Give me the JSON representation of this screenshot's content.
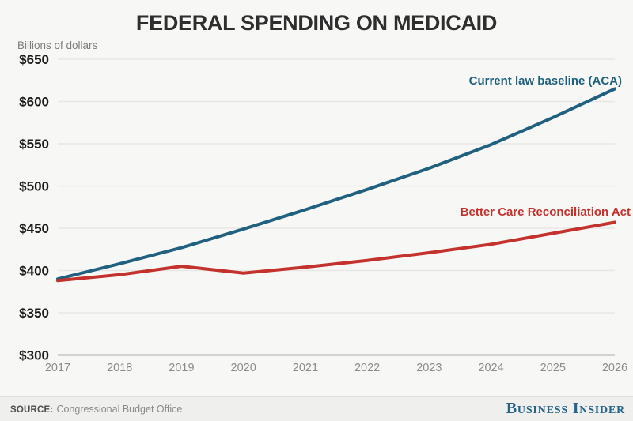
{
  "title": "FEDERAL SPENDING ON MEDICAID",
  "y_axis_caption": "Billions of dollars",
  "footer": {
    "source_label": "SOURCE:",
    "source_text": "Congressional Budget Office",
    "brand": "Business Insider"
  },
  "colors": {
    "aca": "#20617F",
    "bcra": "#C4322E",
    "grid": "#E7E7E5",
    "axis_bottom": "#ADADAB",
    "background": "#F7F7F5",
    "footer_background": "#EFEFED",
    "title_text": "#2E2E2E",
    "x_tick_text": "#8C8C8C",
    "y_tick_text": "#1C1C1C",
    "brand_blue": "#266389"
  },
  "chart_data": {
    "type": "line",
    "title": "FEDERAL SPENDING ON MEDICAID",
    "ylabel": "Billions of dollars",
    "xlabel": "",
    "x": [
      2017,
      2018,
      2019,
      2020,
      2021,
      2022,
      2023,
      2024,
      2025,
      2026
    ],
    "series": [
      {
        "name": "Current law baseline (ACA)",
        "key": "aca",
        "color_key": "aca",
        "values": [
          390,
          408,
          427,
          449,
          472,
          496,
          521,
          549,
          581,
          615
        ]
      },
      {
        "name": "Better Care Reconciliation Act",
        "key": "bcra",
        "color_key": "bcra",
        "values": [
          388,
          395,
          405,
          397,
          404,
          412,
          421,
          431,
          444,
          457
        ]
      }
    ],
    "ylim": [
      300,
      650
    ],
    "y_tick_step": 50,
    "y_tick_prefix": "$",
    "grid": true,
    "legend_position": "end-of-line-labels"
  }
}
